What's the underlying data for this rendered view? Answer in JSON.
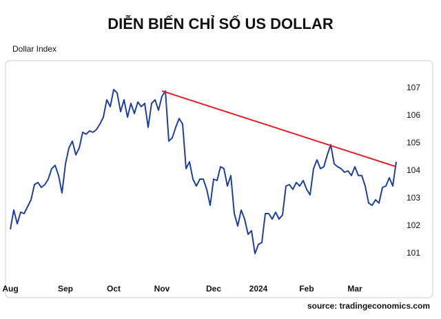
{
  "chart_data": {
    "type": "line",
    "title": "DIỄN BIẾN CHỈ SỐ US DOLLAR",
    "y_label": "Dollar Index",
    "source": "source: tradingeconomics.com",
    "categories": [
      "Aug",
      null,
      null,
      null,
      null,
      null,
      null,
      null,
      null,
      null,
      null,
      null,
      null,
      null,
      null,
      null,
      "Sep",
      null,
      null,
      null,
      null,
      null,
      null,
      null,
      null,
      null,
      null,
      null,
      null,
      null,
      "Oct",
      null,
      null,
      null,
      null,
      null,
      null,
      null,
      null,
      null,
      null,
      null,
      null,
      null,
      "Nov",
      null,
      null,
      null,
      null,
      null,
      null,
      null,
      null,
      null,
      null,
      null,
      null,
      null,
      null,
      "Dec",
      null,
      null,
      null,
      null,
      null,
      null,
      null,
      null,
      null,
      null,
      null,
      null,
      "2024",
      null,
      null,
      null,
      null,
      null,
      null,
      null,
      null,
      null,
      null,
      null,
      null,
      null,
      "Feb",
      null,
      null,
      null,
      null,
      null,
      null,
      null,
      null,
      null,
      null,
      null,
      null,
      null,
      "Mar",
      null,
      null,
      null,
      null,
      null,
      null,
      null,
      null,
      null,
      null,
      null,
      null
    ],
    "series": [
      {
        "name": "Dollar Index",
        "color": "#1f3f99",
        "values": [
          101.88,
          102.58,
          102.08,
          102.5,
          102.45,
          102.7,
          102.95,
          103.5,
          103.58,
          103.4,
          103.5,
          103.7,
          104.08,
          104.2,
          103.83,
          103.2,
          104.25,
          104.83,
          105.08,
          104.58,
          104.83,
          105.4,
          105.33,
          105.45,
          105.4,
          105.5,
          105.7,
          105.95,
          106.58,
          106.33,
          106.95,
          106.83,
          106.15,
          106.58,
          105.95,
          106.45,
          106.08,
          106.5,
          106.33,
          106.45,
          105.58,
          106.45,
          106.58,
          106.2,
          106.7,
          106.9,
          105.08,
          105.2,
          105.58,
          105.9,
          105.7,
          104.08,
          104.33,
          103.7,
          103.45,
          103.7,
          103.7,
          103.33,
          102.75,
          103.7,
          103.65,
          104.15,
          104.08,
          103.45,
          103.83,
          102.45,
          102.0,
          102.58,
          102.25,
          101.7,
          101.83,
          101.0,
          101.33,
          101.4,
          102.45,
          102.45,
          102.25,
          102.5,
          102.25,
          102.4,
          103.45,
          103.5,
          103.33,
          103.58,
          103.45,
          103.65,
          103.33,
          103.13,
          104.08,
          104.4,
          104.08,
          104.15,
          104.58,
          104.95,
          104.25,
          104.15,
          104.08,
          103.95,
          104.0,
          103.83,
          104.15,
          103.83,
          103.83,
          103.45,
          102.83,
          102.75,
          102.95,
          102.83,
          103.4,
          103.45,
          103.75,
          103.45,
          104.33
        ]
      }
    ],
    "trend_line": {
      "color": "#e3202a",
      "start": [
        44,
        106.9
      ],
      "end": [
        112,
        104.15
      ]
    },
    "ylim": [
      100,
      108
    ],
    "yticks": [
      101,
      102,
      103,
      104,
      105,
      106,
      107
    ],
    "grid": false
  }
}
